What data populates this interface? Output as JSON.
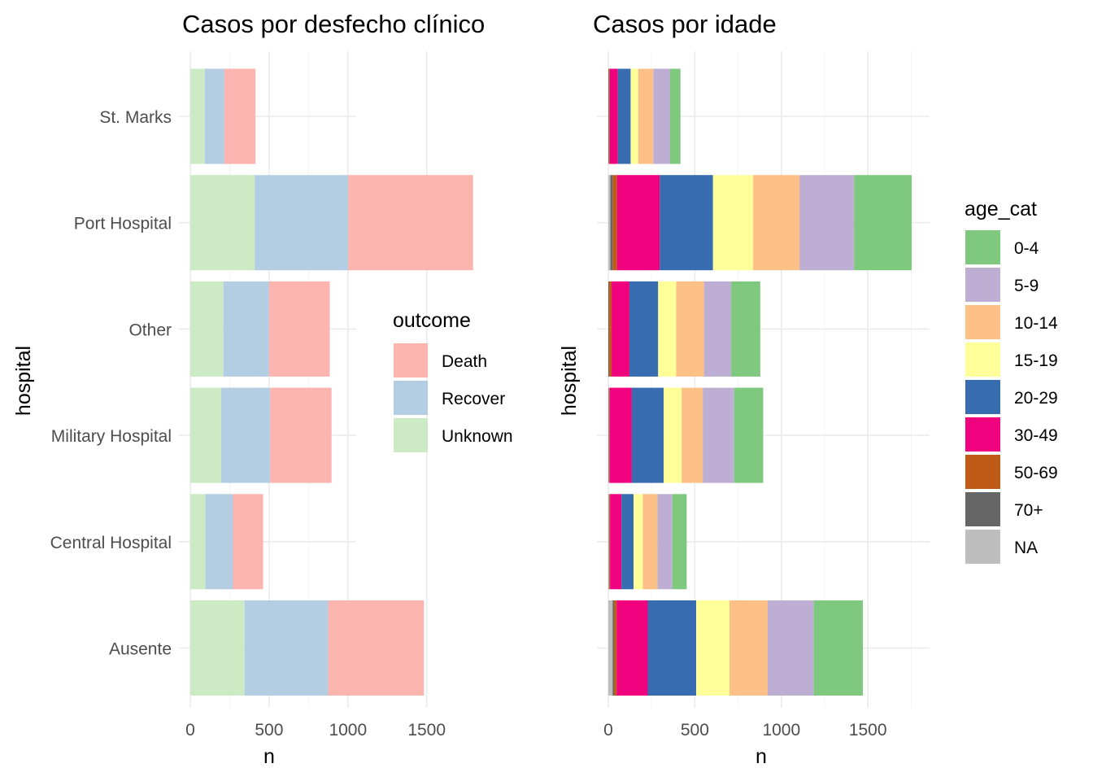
{
  "chart_data": [
    {
      "type": "bar",
      "orientation": "horizontal",
      "stacked": true,
      "title": "Casos por desfecho clínico",
      "xlabel": "n",
      "ylabel": "hospital",
      "xlim": [
        0,
        1800
      ],
      "xticks": [
        0,
        500,
        1000,
        1500
      ],
      "xtick_labels": [
        "0",
        "500",
        "1000",
        "1500"
      ],
      "grid": true,
      "categories": [
        "St. Marks",
        "Port Hospital",
        "Other",
        "Military Hospital",
        "Central Hospital",
        "Ausente"
      ],
      "legend": {
        "title": "outcome",
        "position": "right"
      },
      "series": [
        {
          "name": "Unknown",
          "color": "#CCEBC5",
          "values": [
            92,
            409,
            210,
            196,
            96,
            344
          ]
        },
        {
          "name": "Recover",
          "color": "#B3CDE3",
          "values": [
            124,
            593,
            290,
            311,
            175,
            531
          ]
        },
        {
          "name": "Death",
          "color": "#FBB4AE",
          "values": [
            198,
            792,
            385,
            389,
            191,
            607
          ]
        }
      ]
    },
    {
      "type": "bar",
      "orientation": "horizontal",
      "stacked": true,
      "title": "Casos por idade",
      "xlabel": "n",
      "ylabel": "hospital",
      "xlim": [
        0,
        1800
      ],
      "xticks": [
        0,
        500,
        1000,
        1500
      ],
      "xtick_labels": [
        "0",
        "500",
        "1000",
        "1500"
      ],
      "grid": true,
      "categories": [
        "St. Marks",
        "Port Hospital",
        "Other",
        "Military Hospital",
        "Central Hospital",
        "Ausente"
      ],
      "legend": {
        "title": "age_cat",
        "position": "right"
      },
      "series": [
        {
          "name": "NA",
          "color": "#BEBEBE",
          "values": [
            0,
            12,
            0,
            2,
            3,
            25
          ]
        },
        {
          "name": "70+",
          "color": "#666666",
          "values": [
            4,
            13,
            5,
            3,
            3,
            8
          ]
        },
        {
          "name": "50-69",
          "color": "#BF5B17",
          "values": [
            4,
            25,
            14,
            3,
            4,
            15
          ]
        },
        {
          "name": "30-49",
          "color": "#F0027F",
          "values": [
            47,
            247,
            103,
            128,
            66,
            180
          ]
        },
        {
          "name": "20-29",
          "color": "#386CB0",
          "values": [
            74,
            308,
            166,
            184,
            70,
            280
          ]
        },
        {
          "name": "15-19",
          "color": "#FFFF99",
          "values": [
            44,
            232,
            104,
            104,
            53,
            192
          ]
        },
        {
          "name": "10-14",
          "color": "#FDC086",
          "values": [
            87,
            268,
            161,
            122,
            85,
            221
          ]
        },
        {
          "name": "5-9",
          "color": "#BEAED4",
          "values": [
            97,
            315,
            157,
            181,
            86,
            266
          ]
        },
        {
          "name": "0-4",
          "color": "#7FC97F",
          "values": [
            60,
            333,
            168,
            168,
            83,
            284
          ]
        }
      ]
    }
  ]
}
